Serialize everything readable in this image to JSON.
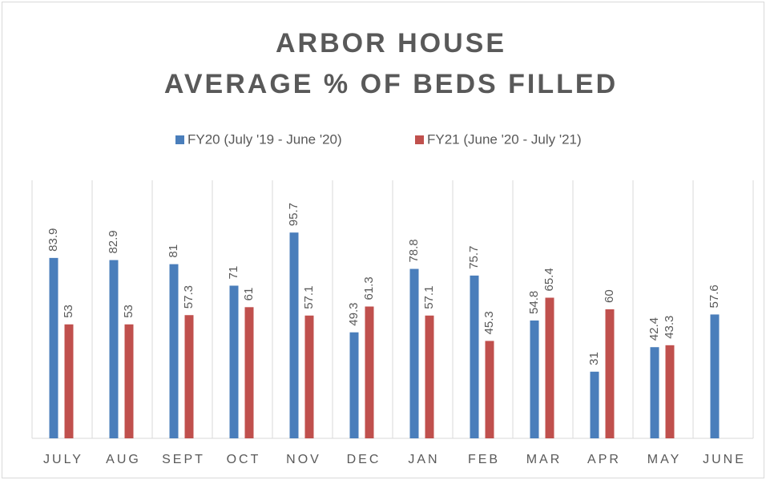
{
  "chart_data": {
    "type": "bar",
    "title": [
      "ARBOR HOUSE",
      "AVERAGE % OF BEDS FILLED"
    ],
    "categories": [
      "JULY",
      "AUG",
      "SEPT",
      "OCT",
      "NOV",
      "DEC",
      "JAN",
      "FEB",
      "MAR",
      "APR",
      "MAY",
      "JUNE"
    ],
    "series": [
      {
        "name": "FY20 (July '19 - June '20)",
        "color": "#4a7ebb",
        "values": [
          83.9,
          82.9,
          81,
          71,
          95.7,
          49.3,
          78.8,
          75.7,
          54.8,
          31,
          42.4,
          57.6
        ]
      },
      {
        "name": "FY21 (June '20 - July '21)",
        "color": "#c0504d",
        "values": [
          53,
          53,
          57.3,
          61,
          57.1,
          61.3,
          57.1,
          45.3,
          65.4,
          60,
          43.3,
          null
        ]
      }
    ],
    "ylim": [
      0,
      120
    ],
    "legend": "top",
    "grid": true
  }
}
